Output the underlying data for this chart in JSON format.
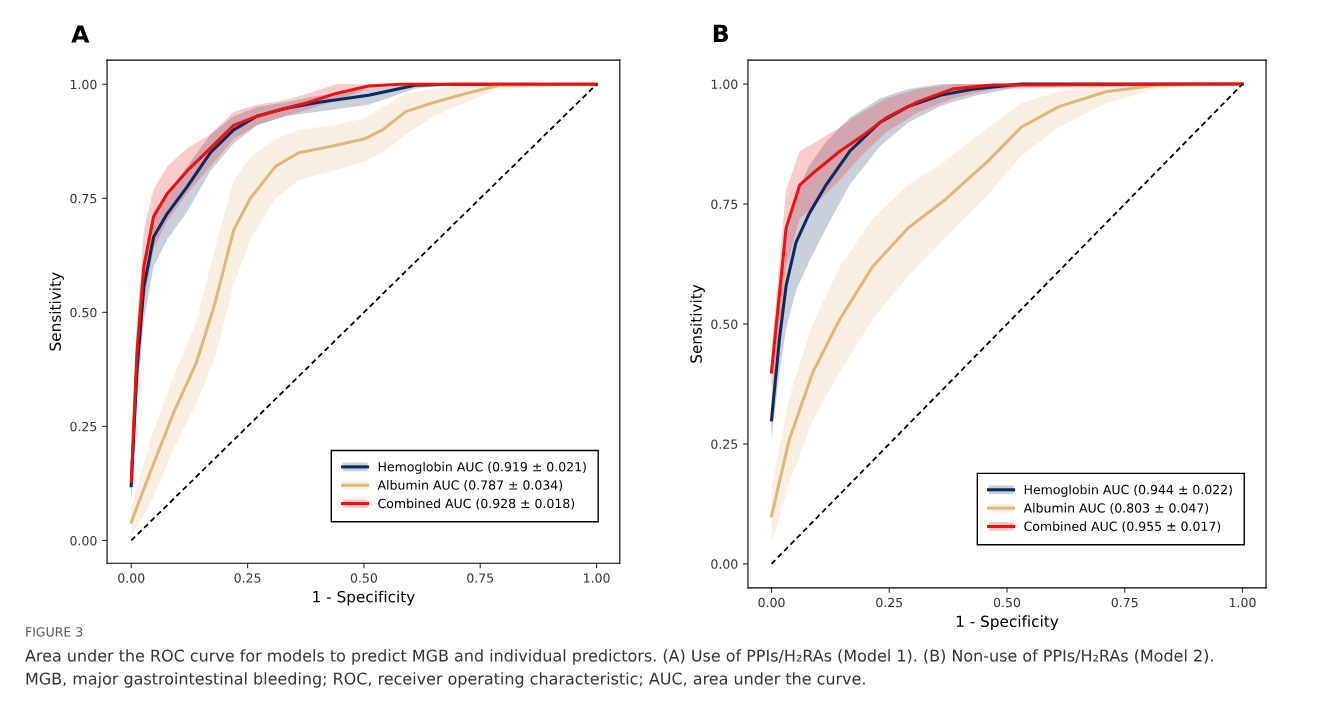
{
  "chart_data": [
    {
      "type": "line",
      "title": "A",
      "xlabel": "1 - Specificity",
      "ylabel": "Sensitivity",
      "xlim": [
        -0.052,
        1.05
      ],
      "ylim": [
        -0.05,
        1.053
      ],
      "xticks": [
        {
          "value": 0,
          "label": "0.00"
        },
        {
          "value": 0.25,
          "label": "0.25"
        },
        {
          "value": 0.5,
          "label": "0.50"
        },
        {
          "value": 0.75,
          "label": "0.75"
        },
        {
          "value": 1,
          "label": "1.00"
        }
      ],
      "yticks": [
        {
          "value": 0,
          "label": "0.00"
        },
        {
          "value": 0.25,
          "label": "0.25"
        },
        {
          "value": 0.5,
          "label": "0.50"
        },
        {
          "value": 0.75,
          "label": "0.75"
        },
        {
          "value": 1,
          "label": "1.00"
        }
      ],
      "grid": false,
      "legend": "bottom right",
      "annotations": [
        "FIGURE 3",
        "Area under the ROC curve for models to predict MGB and individual predictors. (A) Use of PPIs/H₂RAs (Model 1). (B) Non-use of PPIs/H₂RAs (Model 2).",
        "MGB, major gastrointestinal bleeding; ROC, receiver operating characteristic; AUC, area under the curve."
      ],
      "series": [
        {
          "color": "#000000",
          "line_style": "dashed",
          "x": [
            0,
            1
          ],
          "values": [
            0,
            1
          ]
        },
        {
          "name": "Hemoglobin AUC (0.919 ± 0.021)",
          "color": "#0b2a5e",
          "x": [
            0,
            0.012,
            0.027,
            0.048,
            0.077,
            0.12,
            0.17,
            0.22,
            0.27,
            0.33,
            0.4,
            0.51,
            0.61,
            0.69,
            1.0
          ],
          "values": [
            0.12,
            0.37,
            0.555,
            0.665,
            0.716,
            0.775,
            0.85,
            0.9,
            0.93,
            0.947,
            0.96,
            0.976,
            0.998,
            1.0,
            1.0
          ],
          "lower": [
            0.08,
            0.3,
            0.48,
            0.6,
            0.66,
            0.72,
            0.81,
            0.87,
            0.91,
            0.93,
            0.94,
            0.955,
            0.99,
            1.0,
            1.0
          ],
          "upper": [
            0.16,
            0.43,
            0.62,
            0.72,
            0.76,
            0.82,
            0.89,
            0.93,
            0.95,
            0.96,
            0.975,
            0.99,
            1.0,
            1.0,
            1.0
          ]
        },
        {
          "name": "Albumin AUC (0.787 ± 0.034)",
          "color": "#e0b77a",
          "x": [
            0,
            0.041,
            0.091,
            0.14,
            0.18,
            0.22,
            0.256,
            0.31,
            0.36,
            0.435,
            0.5,
            0.54,
            0.59,
            0.65,
            0.72,
            0.79,
            1.0
          ],
          "values": [
            0.04,
            0.15,
            0.28,
            0.39,
            0.52,
            0.68,
            0.75,
            0.82,
            0.85,
            0.865,
            0.88,
            0.9,
            0.94,
            0.96,
            0.98,
            0.998,
            1.0
          ],
          "lower": [
            0.01,
            0.08,
            0.2,
            0.3,
            0.4,
            0.56,
            0.66,
            0.75,
            0.79,
            0.81,
            0.83,
            0.85,
            0.89,
            0.93,
            0.96,
            0.99,
            1.0
          ],
          "upper": [
            0.07,
            0.22,
            0.36,
            0.48,
            0.64,
            0.79,
            0.84,
            0.88,
            0.9,
            0.91,
            0.925,
            0.95,
            0.98,
            0.99,
            1.0,
            1.0,
            1.0
          ]
        },
        {
          "name": "Combined AUC (0.928 ± 0.018)",
          "color": "#ee1111",
          "x": [
            0,
            0.012,
            0.027,
            0.048,
            0.077,
            0.12,
            0.17,
            0.22,
            0.27,
            0.33,
            0.38,
            0.44,
            0.51,
            0.58,
            1.0
          ],
          "values": [
            0.13,
            0.41,
            0.6,
            0.71,
            0.76,
            0.81,
            0.86,
            0.91,
            0.93,
            0.947,
            0.96,
            0.98,
            0.996,
            1.0,
            1.0
          ],
          "lower": [
            0.09,
            0.33,
            0.52,
            0.64,
            0.7,
            0.76,
            0.82,
            0.88,
            0.91,
            0.93,
            0.945,
            0.965,
            0.99,
            1.0,
            1.0
          ],
          "upper": [
            0.17,
            0.48,
            0.68,
            0.77,
            0.82,
            0.86,
            0.89,
            0.94,
            0.955,
            0.965,
            0.98,
            1.0,
            1.0,
            1.0,
            1.0
          ]
        }
      ]
    },
    {
      "type": "line",
      "title": "B",
      "xlabel": "1 - Specificity",
      "ylabel": "Sensitivity",
      "xlim": [
        -0.05,
        1.05
      ],
      "ylim": [
        -0.05,
        1.05
      ],
      "xticks": [
        {
          "value": 0,
          "label": "0.00"
        },
        {
          "value": 0.25,
          "label": "0.25"
        },
        {
          "value": 0.5,
          "label": "0.50"
        },
        {
          "value": 0.75,
          "label": "0.75"
        },
        {
          "value": 1,
          "label": "1.00"
        }
      ],
      "yticks": [
        {
          "value": 0,
          "label": "0.00"
        },
        {
          "value": 0.25,
          "label": "0.25"
        },
        {
          "value": 0.5,
          "label": "0.50"
        },
        {
          "value": 0.75,
          "label": "0.75"
        },
        {
          "value": 1,
          "label": "1.00"
        }
      ],
      "grid": false,
      "legend": "bottom right",
      "series": [
        {
          "color": "#000000",
          "line_style": "dashed",
          "x": [
            0,
            1
          ],
          "values": [
            0,
            1
          ]
        },
        {
          "name": "Hemoglobin AUC (0.944 ± 0.022)",
          "color": "#0b2a5e",
          "x": [
            0,
            0.017,
            0.031,
            0.052,
            0.08,
            0.116,
            0.166,
            0.23,
            0.29,
            0.36,
            0.43,
            0.53,
            1.0
          ],
          "values": [
            0.3,
            0.47,
            0.58,
            0.67,
            0.73,
            0.79,
            0.86,
            0.92,
            0.953,
            0.977,
            0.99,
            1.0,
            1.0
          ],
          "lower": [
            0.26,
            0.4,
            0.49,
            0.57,
            0.63,
            0.7,
            0.79,
            0.87,
            0.92,
            0.955,
            0.975,
            0.995,
            1.0
          ],
          "upper": [
            0.34,
            0.54,
            0.67,
            0.77,
            0.83,
            0.88,
            0.93,
            0.97,
            0.99,
            1.0,
            1.0,
            1.0,
            1.0
          ]
        },
        {
          "name": "Albumin AUC (0.803 ± 0.047)",
          "color": "#e0b77a",
          "x": [
            0,
            0.038,
            0.088,
            0.145,
            0.215,
            0.29,
            0.37,
            0.46,
            0.53,
            0.61,
            0.71,
            0.82,
            1.0
          ],
          "values": [
            0.1,
            0.26,
            0.4,
            0.51,
            0.62,
            0.7,
            0.76,
            0.84,
            0.91,
            0.953,
            0.984,
            0.998,
            1.0
          ],
          "lower": [
            0.04,
            0.17,
            0.3,
            0.4,
            0.51,
            0.6,
            0.68,
            0.77,
            0.85,
            0.91,
            0.96,
            0.99,
            1.0
          ],
          "upper": [
            0.16,
            0.35,
            0.5,
            0.62,
            0.72,
            0.79,
            0.84,
            0.91,
            0.96,
            0.985,
            1.0,
            1.0,
            1.0
          ]
        },
        {
          "name": "Combined AUC (0.955 ± 0.017)",
          "color": "#ee1111",
          "x": [
            0,
            0.031,
            0.06,
            0.095,
            0.145,
            0.19,
            0.244,
            0.31,
            0.385,
            0.47,
            1.0
          ],
          "values": [
            0.4,
            0.7,
            0.79,
            0.82,
            0.86,
            0.89,
            0.93,
            0.963,
            0.99,
            0.998,
            1.0
          ],
          "lower": [
            0.35,
            0.62,
            0.72,
            0.75,
            0.8,
            0.85,
            0.9,
            0.94,
            0.97,
            0.99,
            1.0
          ],
          "upper": [
            0.45,
            0.78,
            0.86,
            0.88,
            0.91,
            0.94,
            0.97,
            0.99,
            1.0,
            1.0,
            1.0
          ]
        }
      ]
    }
  ]
}
